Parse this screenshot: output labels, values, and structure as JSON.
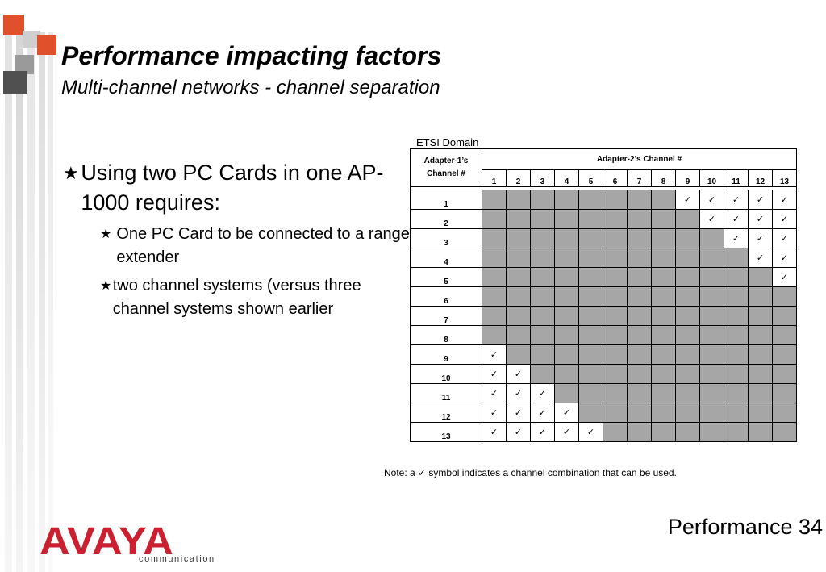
{
  "slide": {
    "title": "Performance impacting factors",
    "subtitle": "Multi-channel networks - channel separation",
    "bullet_main": "Using two PC Cards in one AP-1000 requires:",
    "sub_bullets": [
      "One PC Card to be connected to a range extender",
      "two channel systems (versus three channel systems shown earlier"
    ],
    "bullet_symbol": "★",
    "footer": "Performance 34"
  },
  "table": {
    "domain_label": "ETSI Domain",
    "row_header": "Adapter-1’s Channel #",
    "col_header": "Adapter-2’s Channel #",
    "columns": [
      "1",
      "2",
      "3",
      "4",
      "5",
      "6",
      "7",
      "8",
      "9",
      "10",
      "11",
      "12",
      "13"
    ],
    "rows": [
      "1",
      "2",
      "3",
      "4",
      "5",
      "6",
      "7",
      "8",
      "9",
      "10",
      "11",
      "12",
      "13"
    ],
    "check_symbol": "✓",
    "note": "Note: a ✓ symbol indicates a channel combination that can be used."
  },
  "logo": {
    "brand": "AVAYA",
    "tagline": "communication",
    "color": "#cc1f2f"
  },
  "colors": {
    "accent_orange": "#e0502a",
    "cell_gray": "#a6a6a6"
  }
}
